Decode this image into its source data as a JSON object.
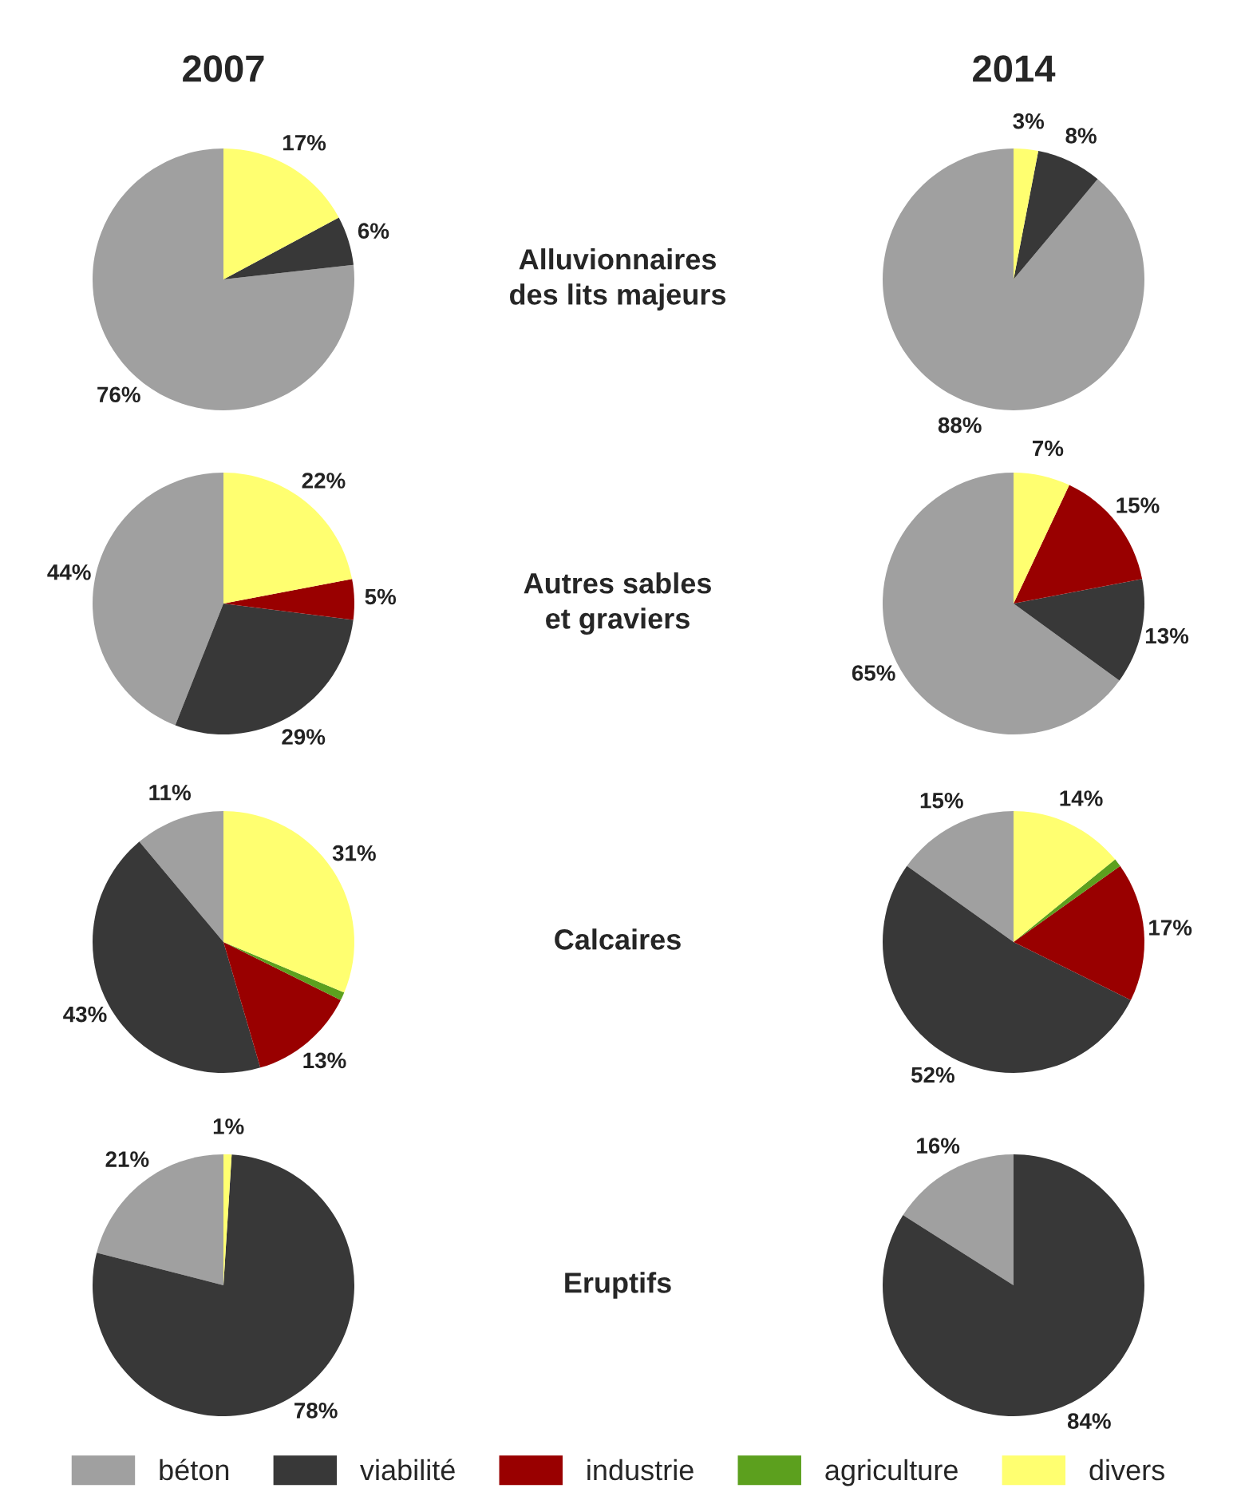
{
  "chart_data": [
    {
      "type": "pie",
      "title": "2007",
      "legend": "bottom",
      "categories": [
        "béton",
        "viabilité",
        "industrie",
        "agriculture",
        "divers"
      ],
      "values": [
        76,
        6,
        0,
        0,
        17
      ],
      "colors": [
        "#a0a0a0",
        "#383838",
        "#990000",
        "#5ca01e",
        "#ffff70"
      ],
      "value_labels": [
        "76%",
        "6%",
        null,
        null,
        "17%"
      ]
    },
    {
      "type": "pie",
      "title": "2014",
      "annotations": [
        "Alluvionnaires\ndes lits majeurs"
      ],
      "categories": [
        null,
        null,
        null,
        null,
        null
      ],
      "values": [
        88,
        8,
        0,
        0,
        3
      ],
      "colors": [
        "#a0a0a0",
        "#383838",
        "#990000",
        "#5ca01e",
        "#ffff70"
      ],
      "value_labels": [
        "88%",
        "8%",
        null,
        null,
        "3%"
      ]
    },
    {
      "type": "pie",
      "categories": [
        null,
        null,
        null,
        null,
        null
      ],
      "values": [
        44,
        29,
        5,
        0,
        22
      ],
      "colors": [
        "#a0a0a0",
        "#383838",
        "#990000",
        "#5ca01e",
        "#ffff70"
      ],
      "value_labels": [
        "44%",
        "29%",
        "5%",
        null,
        "22%"
      ]
    },
    {
      "type": "pie",
      "annotations": [
        "Autres sables\net graviers"
      ],
      "categories": [
        null,
        null,
        null,
        null,
        null
      ],
      "values": [
        65,
        13,
        15,
        0,
        7
      ],
      "colors": [
        "#a0a0a0",
        "#383838",
        "#990000",
        "#5ca01e",
        "#ffff70"
      ],
      "value_labels": [
        "65%",
        "13%",
        "15%",
        null,
        "7%"
      ]
    },
    {
      "type": "pie",
      "categories": [
        null,
        null,
        null,
        null,
        null
      ],
      "values": [
        11,
        43,
        13,
        1,
        31
      ],
      "colors": [
        "#a0a0a0",
        "#383838",
        "#990000",
        "#5ca01e",
        "#ffff70"
      ],
      "value_labels": [
        "11%",
        "43%",
        "13%",
        null,
        "31%"
      ]
    },
    {
      "type": "pie",
      "annotations": [
        "Calcaires"
      ],
      "categories": [
        null,
        null,
        null,
        null,
        null
      ],
      "values": [
        15,
        52,
        17,
        1,
        14
      ],
      "colors": [
        "#a0a0a0",
        "#383838",
        "#990000",
        "#5ca01e",
        "#ffff70"
      ],
      "value_labels": [
        "15%",
        "52%",
        "17%",
        null,
        "14%"
      ]
    },
    {
      "type": "pie",
      "categories": [
        null,
        null,
        null,
        null,
        null
      ],
      "values": [
        21,
        78,
        0,
        0,
        1
      ],
      "colors": [
        "#a0a0a0",
        "#383838",
        "#990000",
        "#5ca01e",
        "#ffff70"
      ],
      "value_labels": [
        "21%",
        "78%",
        null,
        null,
        "1%"
      ]
    },
    {
      "type": "pie",
      "annotations": [
        "Eruptifs"
      ],
      "categories": [
        null,
        null,
        null,
        null,
        null
      ],
      "values": [
        16,
        84,
        0,
        0,
        0
      ],
      "colors": [
        "#a0a0a0",
        "#383838",
        "#990000",
        "#5ca01e",
        "#ffff70"
      ],
      "value_labels": [
        "16%",
        "84%",
        null,
        null,
        null
      ]
    }
  ]
}
